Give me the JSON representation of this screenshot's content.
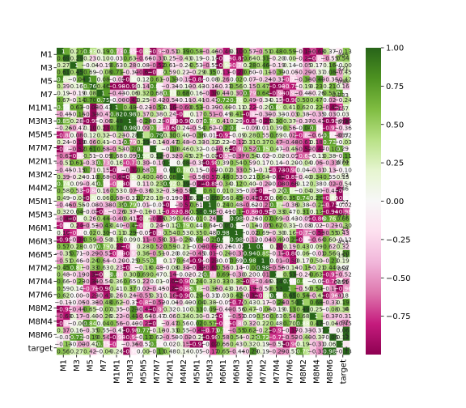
{
  "chart_data": {
    "type": "heatmap",
    "title": "",
    "xlabel": "",
    "ylabel": "",
    "colormap": "PiYG",
    "colormap_stops": [
      "#8e0152",
      "#c51b7d",
      "#de77ae",
      "#f1b6da",
      "#fde0ef",
      "#f7f7f7",
      "#e6f5d0",
      "#b8e186",
      "#7fbc41",
      "#4d9221",
      "#276419"
    ],
    "vmin": -1.0,
    "vmax": 1.0,
    "colorbar_ticks": [
      "1.00",
      "0.75",
      "0.50",
      "0.25",
      "0.00",
      "−0.25",
      "−0.50",
      "−0.75"
    ],
    "colorbar_tick_values": [
      1.0,
      0.75,
      0.5,
      0.25,
      0.0,
      -0.25,
      -0.5,
      -0.75
    ],
    "row_tick_labels": [
      "M1",
      "M3",
      "M5",
      "M7",
      "M1M1",
      "M3M3",
      "M5M5",
      "M7M7",
      "M2M1",
      "M3M2",
      "M4M2",
      "M5M1",
      "M5M3",
      "M6M1",
      "M6M3",
      "M6M5",
      "M7M2",
      "M7M4",
      "M7M6",
      "M8M2",
      "M8M4",
      "M8M6",
      "target"
    ],
    "column_tick_labels": [
      "M1",
      "M3",
      "M5",
      "M7",
      "M1M1",
      "M3M3",
      "M5M5",
      "M7M7",
      "M2M1",
      "M4M2",
      "M5M1",
      "M5M3",
      "M6M1",
      "M6M3",
      "M6M5",
      "M7M2",
      "M7M4",
      "M7M6",
      "M8M2",
      "M8M4",
      "M8M6",
      "target"
    ],
    "visible_annotation_fragments": [
      {
        "row": "M1",
        "text": "365"
      },
      {
        "row": "M3",
        "text": "321"
      },
      {
        "row": "M5",
        "text": "096"
      },
      {
        "row": "M7",
        "text": "0.033"
      },
      {
        "row": "M1M1",
        "text": "157"
      },
      {
        "row": "M3M3",
        "text": "078"
      },
      {
        "row": "M5M5",
        "text": "037"
      },
      {
        "row": "M7M7",
        "text": "29"
      },
      {
        "row": "M2M1",
        "text": "074"
      },
      {
        "row": "M3M2",
        "text": "83"
      },
      {
        "row": "M4M2",
        "text": "246"
      },
      {
        "row": "M5M1",
        "text": "27"
      },
      {
        "row": "M5M3",
        "text": "471"
      },
      {
        "row": "M6M1",
        "text": "29"
      },
      {
        "row": "M6M3",
        "text": "453"
      },
      {
        "row": "M6M5",
        "text": "151"
      },
      {
        "row": "M7M2",
        "text": "058"
      },
      {
        "row": "M7M4",
        "text": "0051"
      },
      {
        "row": "M7M6",
        "text": "418"
      },
      {
        "row": "M8M2",
        "text": "6"
      },
      {
        "row": "M8M4",
        "text": "97"
      },
      {
        "row": "M8M6",
        "text": "5"
      },
      {
        "row": "target",
        "text": "1"
      }
    ]
  }
}
